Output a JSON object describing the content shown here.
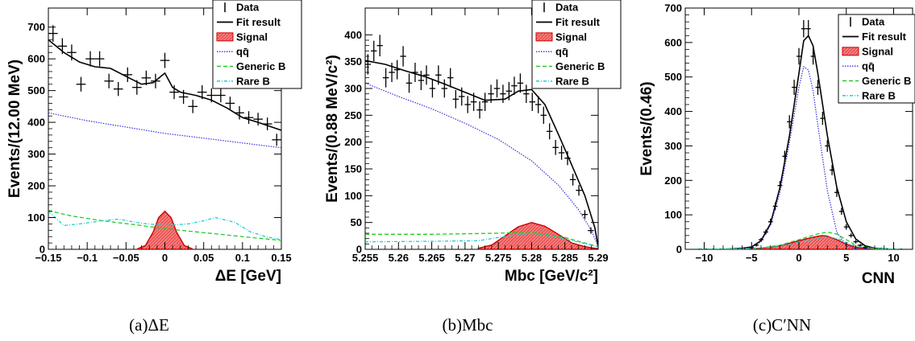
{
  "colors": {
    "data": "#000000",
    "fit": "#000000",
    "signal_fill": "#ee5555",
    "signal_line": "#cc0000",
    "qqbar": "#3333dd",
    "generic_b": "#22cc22",
    "rare_b": "#22cccc"
  },
  "chart_data": [
    {
      "type": "line",
      "panel": "a",
      "caption": "(a)ΔE",
      "xlabel": "ΔE [GeV]",
      "ylabel": "Events/(12.00 MeV)",
      "xlim": [
        -0.15,
        0.15
      ],
      "ylim": [
        0,
        760
      ],
      "x_ticks": [
        -0.15,
        -0.1,
        -0.05,
        0,
        0.05,
        0.1,
        0.15
      ],
      "x_tick_labels": [
        "−0.15",
        "−0.1",
        "−0.05",
        "0",
        "0.05",
        "0.1",
        "0.15"
      ],
      "y_ticks": [
        0,
        100,
        200,
        300,
        400,
        500,
        600,
        700
      ],
      "y_tick_labels": [
        "0",
        "100",
        "200",
        "300",
        "400",
        "500",
        "600",
        "700"
      ],
      "legend": {
        "position": "top-right",
        "entries": [
          {
            "label": "Data",
            "style": "data"
          },
          {
            "label": "Fit result",
            "style": "fit"
          },
          {
            "label": "Signal",
            "style": "signal"
          },
          {
            "label": "qq̄",
            "style": "qqbar"
          },
          {
            "label": "Generic B",
            "style": "generic_b"
          },
          {
            "label": "Rare B",
            "style": "rare_b"
          }
        ]
      },
      "data_points": {
        "x": [
          -0.144,
          -0.132,
          -0.12,
          -0.108,
          -0.096,
          -0.084,
          -0.072,
          -0.06,
          -0.048,
          -0.036,
          -0.024,
          -0.012,
          0.0,
          0.012,
          0.024,
          0.036,
          0.048,
          0.06,
          0.072,
          0.084,
          0.096,
          0.108,
          0.12,
          0.132,
          0.144
        ],
        "y": [
          680,
          640,
          620,
          520,
          600,
          600,
          530,
          505,
          550,
          510,
          540,
          530,
          595,
          495,
          480,
          450,
          495,
          485,
          485,
          460,
          430,
          415,
          410,
          395,
          345
        ],
        "yerr": [
          26,
          25,
          25,
          23,
          24,
          24,
          23,
          22,
          23,
          23,
          23,
          23,
          24,
          22,
          22,
          21,
          22,
          22,
          22,
          21,
          21,
          20,
          20,
          20,
          19
        ]
      },
      "series": [
        {
          "name": "Fit result",
          "style": "fit",
          "x": [
            -0.15,
            -0.13,
            -0.11,
            -0.09,
            -0.07,
            -0.05,
            -0.03,
            -0.015,
            0.0,
            0.01,
            0.02,
            0.04,
            0.06,
            0.08,
            0.1,
            0.12,
            0.15
          ],
          "y": [
            660,
            620,
            590,
            575,
            570,
            545,
            520,
            525,
            555,
            510,
            495,
            485,
            470,
            445,
            415,
            400,
            375
          ]
        },
        {
          "name": "qq̄",
          "style": "qqbar",
          "x": [
            -0.15,
            -0.1,
            -0.05,
            0.0,
            0.05,
            0.1,
            0.15
          ],
          "y": [
            430,
            405,
            385,
            365,
            350,
            335,
            320
          ]
        },
        {
          "name": "Generic B",
          "style": "generic_b",
          "x": [
            -0.15,
            -0.12,
            -0.08,
            -0.04,
            0.0,
            0.04,
            0.08,
            0.12,
            0.15
          ],
          "y": [
            122,
            105,
            90,
            78,
            65,
            55,
            45,
            35,
            28
          ]
        },
        {
          "name": "Rare B",
          "style": "rare_b",
          "x": [
            -0.15,
            -0.13,
            -0.11,
            -0.08,
            -0.06,
            -0.03,
            0.0,
            0.03,
            0.05,
            0.065,
            0.09,
            0.11,
            0.13,
            0.15
          ],
          "y": [
            120,
            75,
            80,
            90,
            95,
            82,
            75,
            80,
            90,
            100,
            85,
            55,
            40,
            30
          ]
        },
        {
          "name": "Signal",
          "style": "signal",
          "fill": true,
          "x": [
            -0.035,
            -0.025,
            -0.015,
            -0.008,
            0.0,
            0.008,
            0.015,
            0.025,
            0.035
          ],
          "y": [
            2,
            12,
            55,
            100,
            120,
            100,
            55,
            12,
            2
          ]
        }
      ]
    },
    {
      "type": "line",
      "panel": "b",
      "caption": "(b)Mbc",
      "xlabel": "Mbc [GeV/c²]",
      "ylabel": "Events/(0.88 MeV/c²)",
      "xlim": [
        5.255,
        5.29
      ],
      "ylim": [
        0,
        450
      ],
      "x_ticks": [
        5.255,
        5.26,
        5.265,
        5.27,
        5.275,
        5.28,
        5.285,
        5.29
      ],
      "x_tick_labels": [
        "5.255",
        "5.26",
        "5.265",
        "5.27",
        "5.275",
        "5.28",
        "5.285",
        "5.29"
      ],
      "y_ticks": [
        0,
        50,
        100,
        150,
        200,
        250,
        300,
        350,
        400
      ],
      "y_tick_labels": [
        "0",
        "50",
        "100",
        "150",
        "200",
        "250",
        "300",
        "350",
        "400"
      ],
      "legend": {
        "position": "top-right",
        "entries": [
          {
            "label": "Data",
            "style": "data"
          },
          {
            "label": "Fit result",
            "style": "fit"
          },
          {
            "label": "Signal",
            "style": "signal"
          },
          {
            "label": "qq̄",
            "style": "qqbar"
          },
          {
            "label": "Generic B",
            "style": "generic_b"
          },
          {
            "label": "Rare B",
            "style": "rare_b"
          }
        ]
      },
      "data_points": {
        "x": [
          5.2554,
          5.2563,
          5.2572,
          5.2581,
          5.259,
          5.2598,
          5.2607,
          5.2616,
          5.2625,
          5.2634,
          5.2642,
          5.2651,
          5.266,
          5.2669,
          5.2678,
          5.2686,
          5.2695,
          5.2704,
          5.2713,
          5.2722,
          5.273,
          5.2739,
          5.2748,
          5.2757,
          5.2766,
          5.2774,
          5.2783,
          5.2792,
          5.2801,
          5.281,
          5.2818,
          5.2827,
          5.2836,
          5.2845,
          5.2854,
          5.2862,
          5.2871,
          5.288,
          5.2889
        ],
        "y": [
          345,
          370,
          380,
          320,
          330,
          335,
          360,
          310,
          330,
          315,
          325,
          300,
          325,
          300,
          320,
          280,
          285,
          270,
          275,
          260,
          275,
          290,
          300,
          290,
          295,
          305,
          310,
          290,
          275,
          270,
          250,
          220,
          190,
          180,
          170,
          130,
          110,
          65,
          35
        ],
        "yerr": [
          19,
          19,
          20,
          18,
          18,
          18,
          19,
          18,
          18,
          18,
          18,
          17,
          18,
          17,
          18,
          17,
          17,
          16,
          17,
          16,
          17,
          17,
          17,
          17,
          17,
          17,
          18,
          17,
          17,
          16,
          16,
          15,
          14,
          13,
          13,
          11,
          10,
          8,
          6
        ]
      },
      "series": [
        {
          "name": "Fit result",
          "style": "fit",
          "x": [
            5.255,
            5.258,
            5.261,
            5.264,
            5.267,
            5.27,
            5.273,
            5.276,
            5.278,
            5.28,
            5.282,
            5.284,
            5.286,
            5.288,
            5.2895,
            5.29
          ],
          "y": [
            352,
            345,
            333,
            322,
            308,
            293,
            278,
            280,
            295,
            298,
            270,
            215,
            158,
            100,
            40,
            5
          ]
        },
        {
          "name": "qq̄",
          "style": "qqbar",
          "x": [
            5.255,
            5.26,
            5.265,
            5.27,
            5.275,
            5.28,
            5.284,
            5.287,
            5.289,
            5.29
          ],
          "y": [
            310,
            285,
            262,
            235,
            205,
            165,
            120,
            75,
            35,
            5
          ]
        },
        {
          "name": "Generic B",
          "style": "generic_b",
          "x": [
            5.255,
            5.265,
            5.275,
            5.28,
            5.285,
            5.29
          ],
          "y": [
            28,
            28,
            30,
            32,
            22,
            5
          ]
        },
        {
          "name": "Rare B",
          "style": "rare_b",
          "x": [
            5.255,
            5.265,
            5.272,
            5.276,
            5.28,
            5.284,
            5.29
          ],
          "y": [
            14,
            15,
            16,
            24,
            30,
            22,
            5
          ]
        },
        {
          "name": "Signal",
          "style": "signal",
          "fill": true,
          "x": [
            5.272,
            5.274,
            5.276,
            5.278,
            5.28,
            5.282,
            5.284,
            5.286,
            5.288,
            5.29
          ],
          "y": [
            2,
            8,
            25,
            42,
            50,
            43,
            28,
            12,
            5,
            1
          ]
        }
      ]
    },
    {
      "type": "line",
      "panel": "c",
      "caption": "(c)C′NN",
      "xlabel": "CNN",
      "ylabel": "Events/(0.46)",
      "xlim": [
        -12,
        12
      ],
      "ylim": [
        0,
        700
      ],
      "x_ticks": [
        -10,
        -5,
        0,
        5,
        10
      ],
      "x_tick_labels": [
        "−10",
        "−5",
        "0",
        "5",
        "10"
      ],
      "y_ticks": [
        0,
        100,
        200,
        300,
        400,
        500,
        600,
        700
      ],
      "y_tick_labels": [
        "0",
        "100",
        "200",
        "300",
        "400",
        "500",
        "600",
        "700"
      ],
      "legend": {
        "position": "top-right",
        "entries": [
          {
            "label": "Data",
            "style": "data"
          },
          {
            "label": "Fit result",
            "style": "fit"
          },
          {
            "label": "Signal",
            "style": "signal"
          },
          {
            "label": "qq̄",
            "style": "qqbar"
          },
          {
            "label": "Generic B",
            "style": "generic_b"
          },
          {
            "label": "Rare B",
            "style": "rare_b"
          }
        ]
      },
      "data_points": {
        "x": [
          -5.0,
          -4.5,
          -4.0,
          -3.5,
          -3.0,
          -2.5,
          -2.0,
          -1.5,
          -1.0,
          -0.5,
          0.0,
          0.5,
          1.0,
          1.5,
          2.0,
          2.5,
          3.0,
          3.5,
          4.0,
          4.5,
          5.0,
          5.5,
          6.0,
          6.5,
          7.0
        ],
        "y": [
          5,
          12,
          28,
          50,
          80,
          125,
          185,
          270,
          370,
          470,
          560,
          640,
          640,
          560,
          470,
          380,
          300,
          230,
          165,
          110,
          65,
          40,
          22,
          12,
          5
        ],
        "yerr": [
          2,
          4,
          5,
          7,
          9,
          11,
          13,
          16,
          19,
          22,
          24,
          25,
          25,
          24,
          22,
          19,
          17,
          15,
          13,
          10,
          8,
          6,
          5,
          3,
          2
        ]
      },
      "series": [
        {
          "name": "Fit result",
          "style": "fit",
          "x": [
            -11,
            -8,
            -6,
            -5,
            -4,
            -3,
            -2,
            -1,
            0,
            0.5,
            1,
            1.5,
            2,
            3,
            4,
            5,
            6,
            7,
            8,
            10,
            11
          ],
          "y": [
            0,
            0,
            3,
            7,
            25,
            75,
            180,
            330,
            510,
            605,
            620,
            590,
            510,
            330,
            180,
            80,
            30,
            10,
            3,
            0,
            0
          ]
        },
        {
          "name": "qq̄",
          "style": "qqbar",
          "x": [
            -11,
            -6,
            -5,
            -4,
            -3,
            -2,
            -1,
            0,
            0.5,
            1,
            1.5,
            2,
            3,
            4,
            5,
            6,
            11
          ],
          "y": [
            0,
            2,
            6,
            22,
            70,
            165,
            310,
            470,
            530,
            520,
            460,
            360,
            170,
            50,
            10,
            2,
            0
          ]
        },
        {
          "name": "Generic B",
          "style": "generic_b",
          "x": [
            -11,
            -6,
            -4,
            -2,
            0,
            2,
            3,
            4,
            5,
            6,
            8,
            11
          ],
          "y": [
            0,
            1,
            4,
            12,
            28,
            45,
            50,
            44,
            28,
            12,
            2,
            0
          ]
        },
        {
          "name": "Rare B",
          "style": "rare_b",
          "x": [
            -11,
            -6,
            -4,
            -2,
            0,
            2,
            3,
            4,
            5,
            6,
            8,
            11
          ],
          "y": [
            0,
            1,
            3,
            9,
            20,
            32,
            36,
            32,
            20,
            9,
            1,
            0
          ]
        },
        {
          "name": "Signal",
          "style": "signal",
          "fill": true,
          "x": [
            -11,
            -6,
            -4,
            -2,
            0,
            1,
            2,
            2.5,
            3,
            4,
            5,
            6,
            8,
            11
          ],
          "y": [
            0,
            1,
            3,
            10,
            25,
            32,
            38,
            40,
            38,
            28,
            15,
            6,
            1,
            0
          ]
        }
      ]
    }
  ]
}
